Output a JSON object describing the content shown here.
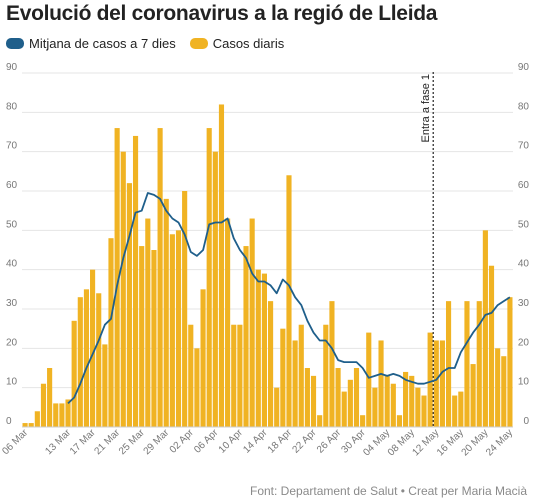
{
  "title": "Evolució del coronavirus a la regió de Lleida",
  "legend": {
    "avg_label": "Mitjana de casos a 7 dies",
    "daily_label": "Casos diaris"
  },
  "source": "Font: Departament de Salut • Creat per Maria Macià",
  "colors": {
    "bars": "#f0b323",
    "line": "#1f5f8b",
    "grid": "#e4e4e4",
    "axis_text": "#777777"
  },
  "chart_data": {
    "type": "bar",
    "title": "Evolució del coronavirus a la regió de Lleida",
    "xlabel": "",
    "ylabel": "",
    "ylim": [
      0,
      90
    ],
    "yticks": [
      0,
      10,
      20,
      30,
      40,
      50,
      60,
      70,
      80,
      90
    ],
    "grid": true,
    "legend_position": "top-left",
    "categories": [
      "06 Mar",
      "07 Mar",
      "08 Mar",
      "09 Mar",
      "10 Mar",
      "11 Mar",
      "12 Mar",
      "13 Mar",
      "14 Mar",
      "15 Mar",
      "16 Mar",
      "17 Mar",
      "18 Mar",
      "19 Mar",
      "20 Mar",
      "21 Mar",
      "22 Mar",
      "23 Mar",
      "24 Mar",
      "25 Mar",
      "26 Mar",
      "27 Mar",
      "28 Mar",
      "29 Mar",
      "30 Mar",
      "31 Mar",
      "01 Apr",
      "02 Apr",
      "03 Apr",
      "04 Apr",
      "05 Apr",
      "06 Apr",
      "07 Apr",
      "08 Apr",
      "09 Apr",
      "10 Apr",
      "11 Apr",
      "12 Apr",
      "13 Apr",
      "14 Apr",
      "15 Apr",
      "16 Apr",
      "17 Apr",
      "18 Apr",
      "19 Apr",
      "20 Apr",
      "21 Apr",
      "22 Apr",
      "23 Apr",
      "24 Apr",
      "25 Apr",
      "26 Apr",
      "27 Apr",
      "28 Apr",
      "29 Apr",
      "30 Apr",
      "01 May",
      "02 May",
      "03 May",
      "04 May",
      "05 May",
      "06 May",
      "07 May",
      "08 May",
      "09 May",
      "10 May",
      "11 May",
      "12 May",
      "13 May",
      "14 May",
      "15 May",
      "16 May",
      "17 May",
      "18 May",
      "19 May",
      "20 May",
      "21 May",
      "22 May",
      "23 May",
      "24 May"
    ],
    "xtick_labels": [
      "06 Mar",
      "13 Mar",
      "17 Mar",
      "21 Mar",
      "25 Mar",
      "29 Mar",
      "02 Apr",
      "06 Apr",
      "10 Apr",
      "14 Apr",
      "18 Apr",
      "22 Apr",
      "26 Apr",
      "30 Apr",
      "04 May",
      "08 May",
      "12 May",
      "16 May",
      "20 May",
      "24 May"
    ],
    "series": [
      {
        "name": "Casos diaris",
        "type": "bar",
        "values": [
          1,
          1,
          4,
          11,
          15,
          6,
          6,
          7,
          27,
          33,
          35,
          40,
          34,
          21,
          48,
          76,
          70,
          62,
          74,
          46,
          53,
          45,
          76,
          58,
          49,
          50,
          60,
          26,
          20,
          35,
          76,
          70,
          82,
          53,
          26,
          26,
          46,
          53,
          40,
          39,
          32,
          10,
          25,
          64,
          22,
          26,
          15,
          13,
          3,
          26,
          32,
          15,
          9,
          12,
          15,
          3,
          24,
          10,
          22,
          13,
          11,
          3,
          14,
          13,
          10,
          8,
          24,
          22,
          22,
          32,
          8,
          9,
          32,
          16,
          32,
          50,
          41,
          20,
          18,
          33
        ],
        "values_note": ""
      },
      {
        "name": "Mitjana de casos a 7 dies",
        "type": "line",
        "values": [
          null,
          null,
          null,
          null,
          null,
          null,
          null,
          6,
          7.5,
          11,
          15,
          18.5,
          22,
          26,
          27.5,
          36,
          43,
          48.5,
          54.5,
          55,
          59.5,
          59,
          58,
          55,
          53,
          52,
          49,
          44.5,
          43.5,
          45,
          51.5,
          52,
          52,
          53,
          48,
          45,
          43,
          39,
          37,
          37,
          36,
          34,
          37.5,
          36,
          33,
          31,
          27,
          24,
          22,
          22,
          20,
          17,
          16.5,
          16.5,
          16.5,
          15,
          12.5,
          13,
          13.5,
          13,
          13.5,
          13,
          12,
          11.5,
          11,
          11,
          11.5,
          12,
          14,
          15,
          15,
          19,
          21.5,
          24,
          26,
          28.5,
          29,
          31,
          32,
          33
        ]
      }
    ],
    "annotations": [
      {
        "label": "Entra a fase 1",
        "x": "12 May",
        "style": "dotted vertical line"
      }
    ]
  }
}
